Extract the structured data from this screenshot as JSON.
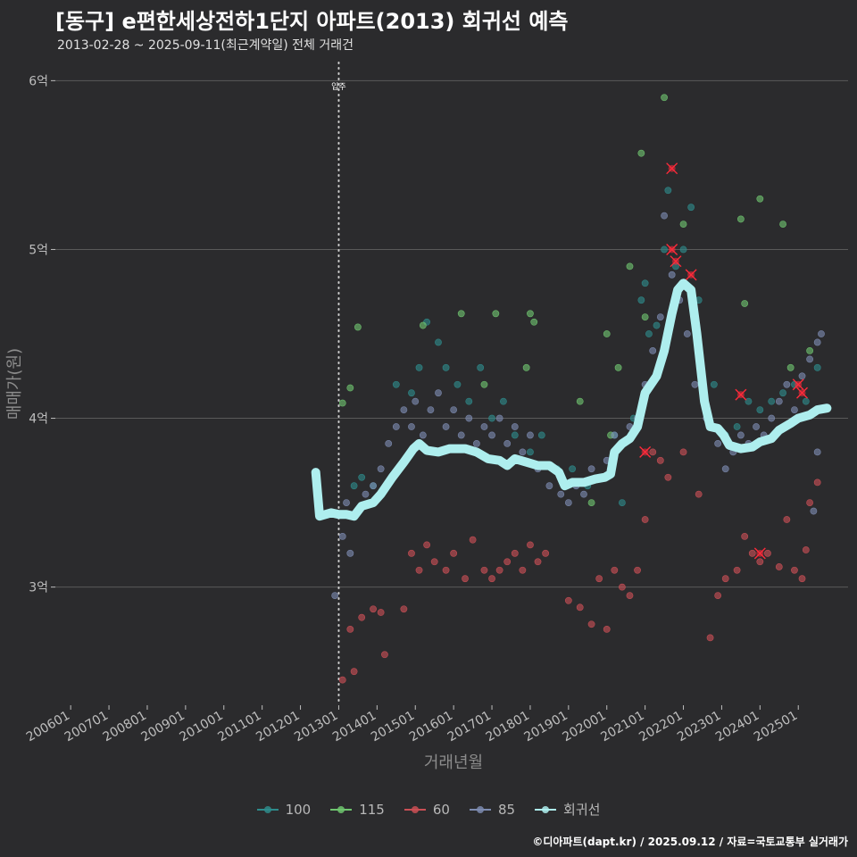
{
  "header": {
    "title": "[동구] e편한세상전하1단지 아파트(2013) 회귀선 예측",
    "subtitle": "2013-02-28 ~ 2025-09-11(최근계약일) 전체 거래건"
  },
  "caption": "©디아파트(dapt.kr) / 2025.09.12 / 자료=국토교통부 실거래가",
  "colors": {
    "background": "#2b2b2d",
    "grid": "#5a5a5a",
    "s100": "#2e8b8b",
    "s115": "#6fc46f",
    "s60": "#c94f55",
    "s85": "#7d8bb0",
    "regression": "#aeeeee",
    "highlight": "#ff2a3a"
  },
  "chart_data": {
    "type": "scatter",
    "title": "[동구] e편한세상전하1단지 아파트(2013) 회귀선 예측",
    "subtitle": "2013-02-28 ~ 2025-09-11(최근계약일) 전체 거래건",
    "xlabel": "거래년월",
    "ylabel": "매매가(원)",
    "x_ticks": [
      "200601",
      "200701",
      "200801",
      "200901",
      "201001",
      "201101",
      "201201",
      "201301",
      "201401",
      "201501",
      "201601",
      "201701",
      "201801",
      "201901",
      "202001",
      "202101",
      "202201",
      "202301",
      "202401",
      "202501"
    ],
    "y_ticks": [
      "3억",
      "4억",
      "5억",
      "6억"
    ],
    "y_tick_values": [
      3.0,
      4.0,
      5.0,
      6.0
    ],
    "xlim": [
      2005.6,
      2026.3
    ],
    "ylim": [
      2.3,
      6.15
    ],
    "grid": true,
    "legend_position": "bottom",
    "annotation": {
      "label": "입주",
      "x": 2013.0
    },
    "series": [
      {
        "name": "100",
        "color": "#2e8b8b",
        "points": [
          [
            2013.4,
            3.6
          ],
          [
            2013.6,
            3.65
          ],
          [
            2013.9,
            3.6
          ],
          [
            2014.5,
            4.2
          ],
          [
            2014.9,
            4.15
          ],
          [
            2015.1,
            4.3
          ],
          [
            2015.3,
            4.57
          ],
          [
            2015.6,
            4.45
          ],
          [
            2015.8,
            4.3
          ],
          [
            2016.1,
            4.2
          ],
          [
            2016.4,
            4.1
          ],
          [
            2016.7,
            4.3
          ],
          [
            2017.0,
            4.0
          ],
          [
            2017.3,
            4.1
          ],
          [
            2017.6,
            3.9
          ],
          [
            2018.0,
            3.8
          ],
          [
            2018.3,
            3.9
          ],
          [
            2018.7,
            3.7
          ],
          [
            2019.1,
            3.7
          ],
          [
            2019.5,
            3.6
          ],
          [
            2019.8,
            3.65
          ],
          [
            2020.2,
            3.9
          ],
          [
            2020.4,
            3.5
          ],
          [
            2020.7,
            4.0
          ],
          [
            2020.9,
            4.7
          ],
          [
            2021.0,
            4.8
          ],
          [
            2021.1,
            4.5
          ],
          [
            2021.3,
            4.55
          ],
          [
            2021.5,
            5.0
          ],
          [
            2021.6,
            5.35
          ],
          [
            2021.8,
            4.9
          ],
          [
            2022.0,
            5.0
          ],
          [
            2022.2,
            5.25
          ],
          [
            2022.4,
            4.7
          ],
          [
            2022.8,
            4.2
          ],
          [
            2023.1,
            3.9
          ],
          [
            2023.4,
            3.95
          ],
          [
            2023.7,
            4.1
          ],
          [
            2024.0,
            4.05
          ],
          [
            2024.3,
            4.1
          ],
          [
            2024.6,
            4.15
          ],
          [
            2024.9,
            4.2
          ],
          [
            2025.2,
            4.1
          ],
          [
            2025.5,
            4.3
          ]
        ]
      },
      {
        "name": "115",
        "color": "#6fc46f",
        "points": [
          [
            2013.1,
            4.09
          ],
          [
            2013.3,
            4.18
          ],
          [
            2013.5,
            4.54
          ],
          [
            2015.2,
            4.55
          ],
          [
            2016.2,
            4.62
          ],
          [
            2017.1,
            4.62
          ],
          [
            2016.8,
            4.2
          ],
          [
            2018.0,
            4.62
          ],
          [
            2018.1,
            4.57
          ],
          [
            2017.9,
            4.3
          ],
          [
            2019.3,
            4.1
          ],
          [
            2019.6,
            3.5
          ],
          [
            2020.0,
            4.5
          ],
          [
            2020.3,
            4.3
          ],
          [
            2020.6,
            4.9
          ],
          [
            2020.9,
            5.57
          ],
          [
            2021.0,
            4.6
          ],
          [
            2021.5,
            5.9
          ],
          [
            2022.0,
            5.15
          ],
          [
            2023.5,
            5.18
          ],
          [
            2023.6,
            4.68
          ],
          [
            2024.0,
            5.3
          ],
          [
            2024.6,
            5.15
          ],
          [
            2024.8,
            4.3
          ],
          [
            2025.3,
            4.4
          ],
          [
            2020.1,
            3.9
          ]
        ]
      },
      {
        "name": "60",
        "color": "#c94f55",
        "points": [
          [
            2013.1,
            2.45
          ],
          [
            2013.3,
            2.75
          ],
          [
            2013.4,
            2.5
          ],
          [
            2013.6,
            2.82
          ],
          [
            2013.9,
            2.87
          ],
          [
            2014.1,
            2.85
          ],
          [
            2014.2,
            2.6
          ],
          [
            2014.7,
            2.87
          ],
          [
            2014.9,
            3.2
          ],
          [
            2015.1,
            3.1
          ],
          [
            2015.3,
            3.25
          ],
          [
            2015.5,
            3.15
          ],
          [
            2015.8,
            3.1
          ],
          [
            2016.0,
            3.2
          ],
          [
            2016.3,
            3.05
          ],
          [
            2016.5,
            3.28
          ],
          [
            2016.8,
            3.1
          ],
          [
            2017.0,
            3.05
          ],
          [
            2017.2,
            3.1
          ],
          [
            2017.4,
            3.15
          ],
          [
            2017.6,
            3.2
          ],
          [
            2017.8,
            3.1
          ],
          [
            2018.0,
            3.25
          ],
          [
            2018.2,
            3.15
          ],
          [
            2018.4,
            3.2
          ],
          [
            2019.0,
            2.92
          ],
          [
            2019.3,
            2.88
          ],
          [
            2019.6,
            2.78
          ],
          [
            2019.8,
            3.05
          ],
          [
            2020.0,
            2.75
          ],
          [
            2020.2,
            3.1
          ],
          [
            2020.4,
            3.0
          ],
          [
            2020.6,
            2.95
          ],
          [
            2020.8,
            3.1
          ],
          [
            2021.0,
            3.4
          ],
          [
            2021.2,
            3.8
          ],
          [
            2021.4,
            3.75
          ],
          [
            2021.6,
            3.65
          ],
          [
            2022.0,
            3.8
          ],
          [
            2022.4,
            3.55
          ],
          [
            2022.7,
            2.7
          ],
          [
            2022.9,
            2.95
          ],
          [
            2023.1,
            3.05
          ],
          [
            2023.4,
            3.1
          ],
          [
            2023.6,
            3.3
          ],
          [
            2023.8,
            3.2
          ],
          [
            2024.0,
            3.15
          ],
          [
            2024.2,
            3.2
          ],
          [
            2024.5,
            3.12
          ],
          [
            2024.7,
            3.4
          ],
          [
            2024.9,
            3.1
          ],
          [
            2025.1,
            3.05
          ],
          [
            2025.3,
            3.5
          ],
          [
            2025.5,
            3.62
          ],
          [
            2025.2,
            3.22
          ]
        ]
      },
      {
        "name": "85",
        "color": "#7d8bb0",
        "points": [
          [
            2013.1,
            3.3
          ],
          [
            2013.2,
            3.5
          ],
          [
            2013.3,
            3.2
          ],
          [
            2013.5,
            3.45
          ],
          [
            2013.7,
            3.55
          ],
          [
            2013.9,
            3.6
          ],
          [
            2014.1,
            3.7
          ],
          [
            2014.3,
            3.85
          ],
          [
            2014.5,
            3.95
          ],
          [
            2014.7,
            4.05
          ],
          [
            2014.9,
            3.95
          ],
          [
            2015.0,
            4.1
          ],
          [
            2015.2,
            3.9
          ],
          [
            2015.4,
            4.05
          ],
          [
            2015.6,
            4.15
          ],
          [
            2015.8,
            3.95
          ],
          [
            2016.0,
            4.05
          ],
          [
            2016.2,
            3.9
          ],
          [
            2016.4,
            4.0
          ],
          [
            2016.6,
            3.85
          ],
          [
            2016.8,
            3.95
          ],
          [
            2017.0,
            3.9
          ],
          [
            2017.2,
            4.0
          ],
          [
            2017.4,
            3.85
          ],
          [
            2017.6,
            3.95
          ],
          [
            2017.8,
            3.8
          ],
          [
            2018.0,
            3.9
          ],
          [
            2018.2,
            3.7
          ],
          [
            2018.5,
            3.6
          ],
          [
            2018.8,
            3.55
          ],
          [
            2019.0,
            3.5
          ],
          [
            2019.2,
            3.6
          ],
          [
            2019.4,
            3.55
          ],
          [
            2019.6,
            3.7
          ],
          [
            2019.8,
            3.65
          ],
          [
            2020.0,
            3.75
          ],
          [
            2020.2,
            3.9
          ],
          [
            2020.4,
            3.85
          ],
          [
            2020.6,
            3.95
          ],
          [
            2020.8,
            4.0
          ],
          [
            2021.0,
            4.2
          ],
          [
            2021.2,
            4.4
          ],
          [
            2021.4,
            4.6
          ],
          [
            2021.5,
            5.2
          ],
          [
            2021.7,
            4.85
          ],
          [
            2021.9,
            4.7
          ],
          [
            2022.1,
            4.5
          ],
          [
            2022.3,
            4.2
          ],
          [
            2022.6,
            4.0
          ],
          [
            2022.9,
            3.85
          ],
          [
            2023.1,
            3.7
          ],
          [
            2023.3,
            3.8
          ],
          [
            2023.5,
            3.9
          ],
          [
            2023.7,
            3.85
          ],
          [
            2023.9,
            3.95
          ],
          [
            2024.1,
            3.9
          ],
          [
            2024.3,
            4.0
          ],
          [
            2024.5,
            4.1
          ],
          [
            2024.7,
            4.2
          ],
          [
            2024.9,
            4.05
          ],
          [
            2025.1,
            4.25
          ],
          [
            2025.3,
            4.35
          ],
          [
            2025.5,
            4.45
          ],
          [
            2025.6,
            4.5
          ],
          [
            2025.5,
            3.8
          ],
          [
            2025.4,
            3.45
          ],
          [
            2012.9,
            2.95
          ]
        ]
      }
    ],
    "highlighted": [
      [
        2021.0,
        3.8
      ],
      [
        2021.7,
        5.48
      ],
      [
        2021.7,
        5.0
      ],
      [
        2021.8,
        4.93
      ],
      [
        2022.2,
        4.85
      ],
      [
        2023.5,
        4.14
      ],
      [
        2024.0,
        3.2
      ],
      [
        2025.0,
        4.2
      ],
      [
        2025.1,
        4.15
      ]
    ],
    "regression": {
      "name": "회귀선",
      "points": [
        [
          2012.4,
          3.68
        ],
        [
          2012.5,
          3.42
        ],
        [
          2012.8,
          3.44
        ],
        [
          2013.0,
          3.43
        ],
        [
          2013.2,
          3.43
        ],
        [
          2013.4,
          3.42
        ],
        [
          2013.6,
          3.48
        ],
        [
          2013.9,
          3.5
        ],
        [
          2014.1,
          3.55
        ],
        [
          2014.4,
          3.65
        ],
        [
          2014.7,
          3.74
        ],
        [
          2014.95,
          3.82
        ],
        [
          2015.1,
          3.85
        ],
        [
          2015.3,
          3.81
        ],
        [
          2015.6,
          3.8
        ],
        [
          2015.9,
          3.82
        ],
        [
          2016.3,
          3.82
        ],
        [
          2016.6,
          3.8
        ],
        [
          2016.9,
          3.76
        ],
        [
          2017.2,
          3.75
        ],
        [
          2017.4,
          3.72
        ],
        [
          2017.6,
          3.76
        ],
        [
          2017.9,
          3.74
        ],
        [
          2018.2,
          3.72
        ],
        [
          2018.5,
          3.72
        ],
        [
          2018.75,
          3.68
        ],
        [
          2018.9,
          3.6
        ],
        [
          2019.1,
          3.62
        ],
        [
          2019.4,
          3.62
        ],
        [
          2019.7,
          3.64
        ],
        [
          2019.95,
          3.65
        ],
        [
          2020.1,
          3.67
        ],
        [
          2020.2,
          3.8
        ],
        [
          2020.4,
          3.85
        ],
        [
          2020.6,
          3.88
        ],
        [
          2020.8,
          3.95
        ],
        [
          2021.0,
          4.15
        ],
        [
          2021.3,
          4.25
        ],
        [
          2021.5,
          4.4
        ],
        [
          2021.7,
          4.62
        ],
        [
          2021.85,
          4.76
        ],
        [
          2022.0,
          4.8
        ],
        [
          2022.2,
          4.76
        ],
        [
          2022.35,
          4.5
        ],
        [
          2022.55,
          4.1
        ],
        [
          2022.7,
          3.95
        ],
        [
          2022.9,
          3.94
        ],
        [
          2023.05,
          3.9
        ],
        [
          2023.2,
          3.84
        ],
        [
          2023.5,
          3.82
        ],
        [
          2023.8,
          3.83
        ],
        [
          2024.0,
          3.86
        ],
        [
          2024.3,
          3.88
        ],
        [
          2024.5,
          3.93
        ],
        [
          2024.8,
          3.97
        ],
        [
          2025.0,
          4.0
        ],
        [
          2025.3,
          4.02
        ],
        [
          2025.5,
          4.05
        ],
        [
          2025.75,
          4.06
        ]
      ]
    }
  }
}
